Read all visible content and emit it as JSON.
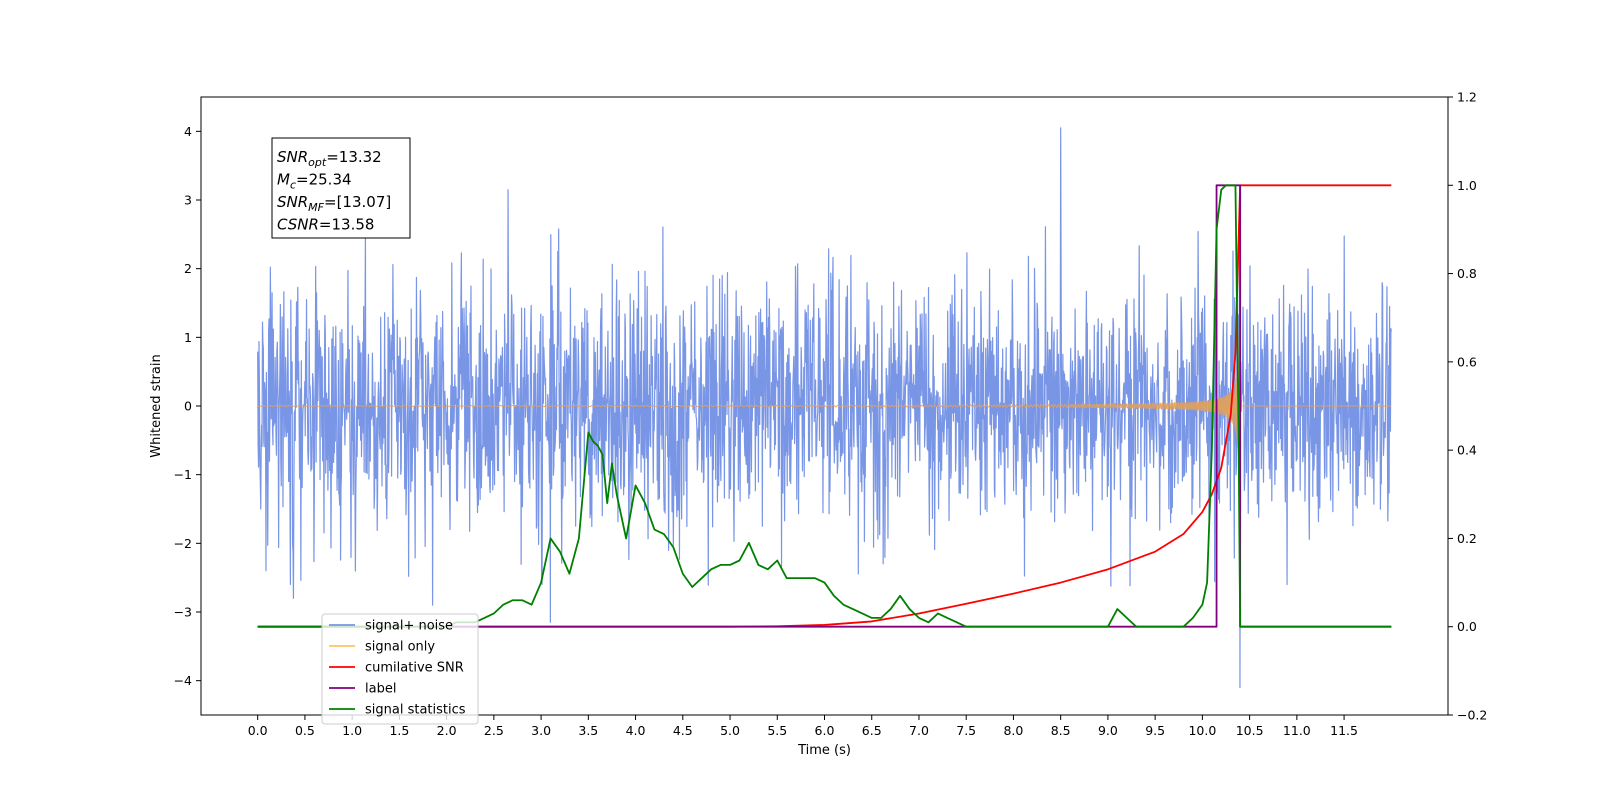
{
  "chart_data": {
    "type": "line",
    "xlabel": "Time (s)",
    "ylabel": "Whitened strain",
    "xlim": [
      -0.6,
      12.6
    ],
    "ylim": [
      -4.5,
      4.5
    ],
    "ylim_right": [
      -0.2,
      1.2
    ],
    "x_ticks": [
      "0.0",
      "0.5",
      "1.0",
      "1.5",
      "2.0",
      "2.5",
      "3.0",
      "3.5",
      "4.0",
      "4.5",
      "5.0",
      "5.5",
      "6.0",
      "6.5",
      "7.0",
      "7.5",
      "8.0",
      "8.5",
      "9.0",
      "9.5",
      "10.0",
      "10.5",
      "11.0",
      "11.5"
    ],
    "y_ticks": [
      "4",
      "3",
      "2",
      "1",
      "0",
      "−1",
      "−2",
      "−3",
      "−4"
    ],
    "y_ticks_right": [
      "1.2",
      "1.0",
      "0.8",
      "0.6",
      "0.4",
      "0.2",
      "0.0",
      "−0.2"
    ],
    "annotation": {
      "lines": [
        {
          "base": "SNR",
          "sub": "opt",
          "rest": "=13.32"
        },
        {
          "base": "M",
          "sub": "c",
          "rest": "=25.34"
        },
        {
          "base": "SNR",
          "sub": "MF",
          "rest": "=[13.07]"
        },
        {
          "base": "CSNR",
          "sub": "",
          "rest": "=13.58"
        }
      ]
    },
    "legend": {
      "placement": "lower-left",
      "entries": [
        {
          "label": "signal+ noise",
          "color": "#7895e6"
        },
        {
          "label": "signal only",
          "color": "#ffc266"
        },
        {
          "label": "cumilative SNR",
          "color": "#ff0000"
        },
        {
          "label": "label",
          "color": "#800080"
        },
        {
          "label": "signal statistics",
          "color": "#008000"
        }
      ]
    },
    "series": [
      {
        "name": "signal+ noise",
        "axis": "left",
        "color": "#7895e6",
        "x_range": [
          0.0,
          12.0
        ],
        "envelope_typical": 1.4,
        "notable_peaks": [
          {
            "x": 8.5,
            "y": 4.05
          },
          {
            "x": 2.65,
            "y": 3.15
          },
          {
            "x": 3.1,
            "y": -3.15
          },
          {
            "x": 10.4,
            "y": -4.1
          },
          {
            "x": 0.38,
            "y": -2.8
          },
          {
            "x": 1.85,
            "y": -2.9
          }
        ]
      },
      {
        "name": "signal only",
        "axis": "left",
        "color": "#e8a050",
        "chirp_start": 6.5,
        "chirp_end": 10.4,
        "peak_amplitude": 1.4
      },
      {
        "name": "cumilative SNR",
        "axis": "right",
        "color": "#ff0000",
        "x": [
          0,
          5.0,
          5.5,
          6.0,
          6.5,
          7.0,
          7.5,
          8.0,
          8.5,
          9.0,
          9.5,
          9.8,
          10.0,
          10.1,
          10.2,
          10.3,
          10.35,
          10.38,
          10.4,
          12.0
        ],
        "y": [
          0,
          0,
          0.001,
          0.004,
          0.012,
          0.03,
          0.052,
          0.075,
          0.1,
          0.13,
          0.17,
          0.21,
          0.26,
          0.3,
          0.36,
          0.48,
          0.62,
          0.85,
          1.0,
          1.0
        ]
      },
      {
        "name": "label",
        "axis": "right",
        "color": "#800080",
        "x": [
          0,
          10.15,
          10.15,
          10.4,
          10.4,
          12.0
        ],
        "y": [
          0,
          0,
          1,
          1,
          0,
          0
        ]
      },
      {
        "name": "signal statistics",
        "axis": "right",
        "color": "#008000",
        "x": [
          0,
          1.0,
          2.0,
          2.1,
          2.2,
          2.3,
          2.4,
          2.5,
          2.6,
          2.7,
          2.8,
          2.9,
          3.0,
          3.1,
          3.2,
          3.3,
          3.4,
          3.5,
          3.55,
          3.6,
          3.65,
          3.7,
          3.75,
          3.8,
          3.9,
          4.0,
          4.1,
          4.2,
          4.3,
          4.4,
          4.5,
          4.6,
          4.7,
          4.8,
          4.9,
          5.0,
          5.1,
          5.2,
          5.3,
          5.4,
          5.5,
          5.6,
          5.7,
          5.8,
          5.9,
          6.0,
          6.1,
          6.2,
          6.3,
          6.4,
          6.5,
          6.6,
          6.7,
          6.8,
          6.9,
          7.0,
          7.1,
          7.2,
          7.3,
          7.4,
          7.5,
          7.6,
          8.0,
          8.5,
          9.0,
          9.1,
          9.2,
          9.3,
          9.8,
          9.9,
          10.0,
          10.05,
          10.1,
          10.15,
          10.2,
          10.25,
          10.3,
          10.35,
          10.38,
          10.4,
          10.45,
          12.0
        ],
        "y": [
          0,
          0,
          0.0,
          0.01,
          0.01,
          0.01,
          0.02,
          0.03,
          0.05,
          0.06,
          0.06,
          0.05,
          0.1,
          0.2,
          0.17,
          0.12,
          0.2,
          0.44,
          0.42,
          0.41,
          0.39,
          0.28,
          0.37,
          0.3,
          0.2,
          0.32,
          0.28,
          0.22,
          0.21,
          0.18,
          0.12,
          0.09,
          0.11,
          0.13,
          0.14,
          0.14,
          0.15,
          0.19,
          0.14,
          0.13,
          0.15,
          0.11,
          0.11,
          0.11,
          0.11,
          0.1,
          0.07,
          0.05,
          0.04,
          0.03,
          0.02,
          0.02,
          0.04,
          0.07,
          0.04,
          0.02,
          0.01,
          0.03,
          0.02,
          0.01,
          0.0,
          0.0,
          0.0,
          0.0,
          0.0,
          0.04,
          0.02,
          0.0,
          0.0,
          0.02,
          0.05,
          0.1,
          0.4,
          0.9,
          0.99,
          1.0,
          1.0,
          1.0,
          0.5,
          0.0,
          0.0,
          0.0
        ]
      }
    ]
  }
}
